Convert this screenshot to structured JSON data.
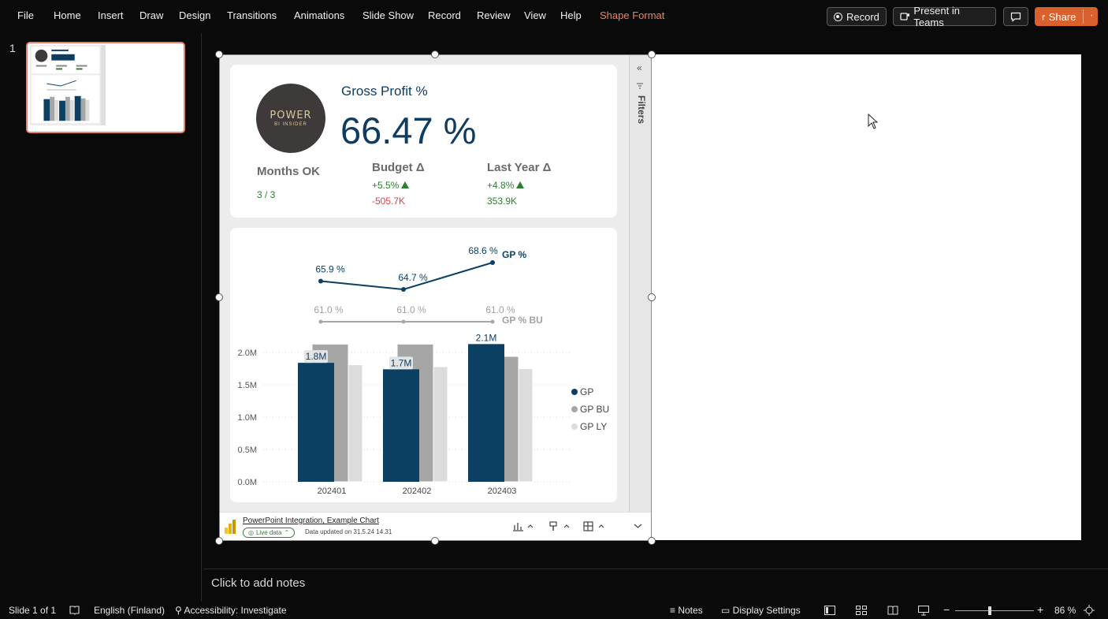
{
  "menu": {
    "items": [
      "File",
      "Home",
      "Insert",
      "Draw",
      "Design",
      "Transitions",
      "Animations",
      "Slide Show",
      "Record",
      "Review",
      "View",
      "Help"
    ],
    "contextual_tab": "Shape Format",
    "record_button": "Record",
    "teams_button": "Present in Teams",
    "share_button": "Share"
  },
  "thumbnails": {
    "slide_number": "1"
  },
  "report": {
    "logo_main": "POWER",
    "logo_sub": "BI INSIDER",
    "kpi_title": "Gross Profit %",
    "kpi_value": "66.47 %",
    "months_ok_label": "Months OK",
    "months_ok_value": "3 / 3",
    "budget_label": "Budget Δ",
    "budget_pct": "+5.5%",
    "budget_abs": "-505.7K",
    "ly_label": "Last Year Δ",
    "ly_pct": "+4.8%",
    "ly_abs": "353.9K",
    "filters_label": "Filters",
    "footer_link": "PowerPoint Integration, Example Chart",
    "live_data": "Live data",
    "updated": "Data updated on 31.5.24 14.31",
    "colors": {
      "gp": "#0b4063",
      "gp_bu": "#a6a6a6",
      "gp_ly": "#dcdcdc",
      "positive": "#2e7d32",
      "negative": "#d64545"
    }
  },
  "chart_data": {
    "type": "bar",
    "categories": [
      "202401",
      "202402",
      "202403"
    ],
    "series": [
      {
        "name": "GP",
        "values": [
          1.84,
          1.74,
          2.13
        ]
      },
      {
        "name": "GP BU",
        "values": [
          2.13,
          2.13,
          1.94
        ]
      },
      {
        "name": "GP LY",
        "values": [
          1.81,
          1.78,
          1.75
        ]
      }
    ],
    "bar_labels": [
      "1.8M",
      "1.7M",
      "2.1M"
    ],
    "yticks": [
      "0.0M",
      "0.5M",
      "1.0M",
      "1.5M",
      "2.0M"
    ],
    "ylim": [
      0,
      2.2
    ],
    "legend": [
      "GP",
      "GP BU",
      "GP LY"
    ],
    "line_series": [
      {
        "name": "GP %",
        "values": [
          65.9,
          64.7,
          68.6
        ],
        "labels": [
          "65.9 %",
          "64.7 %",
          "68.6 %"
        ]
      },
      {
        "name": "GP % BU",
        "values": [
          61.0,
          61.0,
          61.0
        ],
        "labels": [
          "61.0 %",
          "61.0 %",
          "61.0 %"
        ]
      }
    ]
  },
  "notes": {
    "placeholder": "Click to add notes"
  },
  "status": {
    "slide": "Slide 1 of 1",
    "language": "English (Finland)",
    "accessibility": "Accessibility: Investigate",
    "notes": "Notes",
    "display_settings": "Display Settings",
    "zoom": "86 %"
  }
}
